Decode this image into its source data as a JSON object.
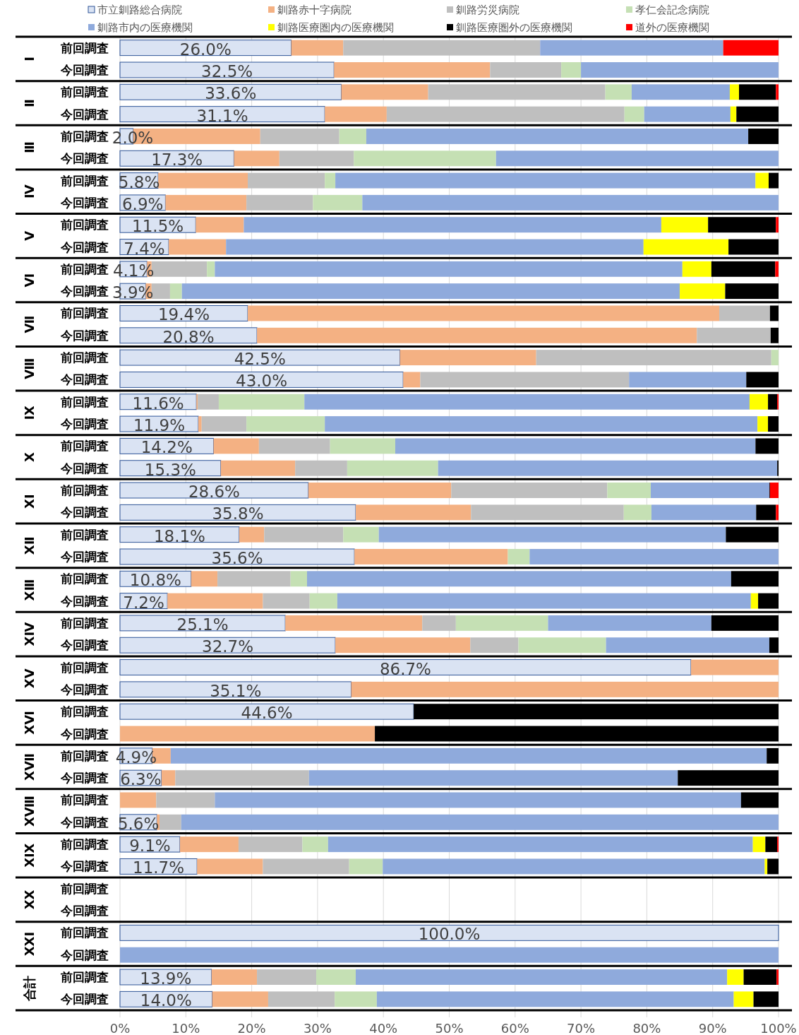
{
  "chart_data": {
    "type": "bar",
    "orientation": "horizontal",
    "stacked": true,
    "grid": "x",
    "legend": "top",
    "categories": [
      "前回調査",
      "今回調査",
      "前回調査",
      "今回調査",
      "前回調査",
      "今回調査",
      "前回調査",
      "今回調査",
      "前回調査",
      "今回調査",
      "前回調査",
      "今回調査",
      "前回調査",
      "今回調査",
      "前回調査",
      "今回調査",
      "前回調査",
      "今回調査",
      "前回調査",
      "今回調査",
      "前回調査",
      "今回調査",
      "前回調査",
      "今回調査",
      "前回調査",
      "今回調査",
      "前回調査",
      "今回調査",
      "前回調査",
      "今回調査",
      "前回調査",
      "今回調査",
      "前回調査",
      "今回調査",
      "前回調査",
      "今回調査",
      "前回調査",
      "今回調査",
      "前回調査",
      "今回調査",
      "前回調査",
      "今回調査",
      "前回調査",
      "今回調査"
    ],
    "annotations": [
      "Ⅰ",
      "Ⅱ",
      "Ⅲ",
      "Ⅳ",
      "Ⅴ",
      "Ⅵ",
      "Ⅶ",
      "Ⅷ",
      "Ⅸ",
      "Ⅹ",
      "ⅩⅠ",
      "ⅩⅡ",
      "ⅩⅢ",
      "ⅩⅣ",
      "ⅩⅤ",
      "ⅩⅥ",
      "ⅩⅦ",
      "ⅩⅧ",
      "ⅩⅨ",
      "ⅩⅩ",
      "ⅩⅩⅠ",
      "合計"
    ],
    "xlim": [
      0,
      100
    ],
    "xticks": [
      {
        "value": 0,
        "label": "0%"
      },
      {
        "value": 10,
        "label": "10%"
      },
      {
        "value": 20,
        "label": "20%"
      },
      {
        "value": 30,
        "label": "30%"
      },
      {
        "value": 40,
        "label": "40%"
      },
      {
        "value": 50,
        "label": "50%"
      },
      {
        "value": 60,
        "label": "60%"
      },
      {
        "value": 70,
        "label": "70%"
      },
      {
        "value": 80,
        "label": "80%"
      },
      {
        "value": 90,
        "label": "90%"
      },
      {
        "value": 100,
        "label": "100%"
      }
    ],
    "series": [
      {
        "name": "市立釧路総合病院",
        "color": "#dae3f3",
        "values": [
          26.0,
          32.5,
          33.6,
          31.1,
          2.0,
          17.3,
          5.8,
          6.9,
          11.5,
          7.4,
          4.1,
          3.9,
          19.4,
          20.8,
          42.5,
          43.0,
          11.6,
          11.9,
          14.2,
          15.3,
          28.6,
          35.8,
          18.1,
          35.6,
          10.8,
          7.2,
          25.1,
          32.7,
          86.7,
          35.1,
          44.6,
          null,
          4.9,
          6.3,
          null,
          5.6,
          9.1,
          11.7,
          null,
          null,
          100.0,
          null,
          13.9,
          14.0
        ],
        "value_labels": [
          "26.0%",
          "32.5%",
          "33.6%",
          "31.1%",
          "2.0%",
          "17.3%",
          "5.8%",
          "6.9%",
          "11.5%",
          "7.4%",
          "4.1%",
          "3.9%",
          "19.4%",
          "20.8%",
          "42.5%",
          "43.0%",
          "11.6%",
          "11.9%",
          "14.2%",
          "15.3%",
          "28.6%",
          "35.8%",
          "18.1%",
          "35.6%",
          "10.8%",
          "7.2%",
          "25.1%",
          "32.7%",
          "86.7%",
          "35.1%",
          "44.6%",
          null,
          "4.9%",
          "6.3%",
          null,
          "5.6%",
          "9.1%",
          "11.7%",
          null,
          null,
          "100.0%",
          null,
          "13.9%",
          "14.0%"
        ]
      },
      {
        "name": "釧路赤十字病院",
        "color": "#f4b183",
        "values": [
          7.9,
          23.7,
          13.2,
          9.4,
          19.3,
          6.9,
          13.6,
          12.3,
          7.3,
          8.7,
          0.7,
          0.9,
          71.6,
          66.8,
          20.7,
          2.6,
          0.2,
          0.5,
          6.9,
          11.3,
          21.7,
          17.5,
          3.8,
          23.3,
          4.0,
          14.5,
          20.8,
          20.5,
          13.3,
          64.9,
          null,
          38.7,
          2.8,
          2.1,
          5.5,
          0.4,
          8.9,
          10.0,
          null,
          null,
          null,
          null,
          6.9,
          8.5
        ]
      },
      {
        "name": "釧路労災病院",
        "color": "#bfbfbf",
        "values": [
          29.9,
          10.8,
          26.9,
          36.1,
          12.0,
          11.3,
          11.7,
          10.1,
          null,
          null,
          8.4,
          2.8,
          7.7,
          11.2,
          35.7,
          31.7,
          3.2,
          6.8,
          10.8,
          7.9,
          23.7,
          23.2,
          12.0,
          null,
          11.1,
          7.1,
          5.1,
          7.3,
          null,
          null,
          null,
          null,
          null,
          20.3,
          8.9,
          3.3,
          9.7,
          13.1,
          null,
          null,
          null,
          null,
          9.0,
          10.1
        ]
      },
      {
        "name": "孝仁会記念病院",
        "color": "#c5e0b4",
        "values": [
          null,
          3.0,
          4.0,
          3.0,
          4.1,
          21.6,
          1.6,
          7.5,
          null,
          null,
          1.2,
          1.8,
          null,
          null,
          1.1,
          null,
          13.0,
          11.9,
          9.9,
          13.8,
          6.6,
          4.2,
          5.4,
          3.3,
          2.5,
          4.2,
          14.0,
          13.3,
          null,
          null,
          null,
          null,
          null,
          null,
          null,
          null,
          3.9,
          5.1,
          null,
          null,
          null,
          null,
          6.0,
          6.4
        ]
      },
      {
        "name": "釧路市内の医療機関",
        "color": "#8faadc",
        "values": [
          27.8,
          30.0,
          14.9,
          13.1,
          58.0,
          42.9,
          63.8,
          63.2,
          63.4,
          63.4,
          71.0,
          75.6,
          null,
          null,
          null,
          17.8,
          67.6,
          65.7,
          54.7,
          51.5,
          18.0,
          15.9,
          52.7,
          37.8,
          64.4,
          62.8,
          24.8,
          24.8,
          null,
          null,
          null,
          null,
          90.5,
          56.0,
          79.9,
          90.7,
          64.5,
          58.0,
          null,
          null,
          null,
          100.0,
          56.4,
          54.2
        ]
      },
      {
        "name": "釧路医療圏内の医療機関",
        "color": "#ffff00",
        "values": [
          null,
          null,
          1.4,
          0.9,
          null,
          null,
          2.0,
          null,
          7.1,
          12.9,
          4.4,
          6.9,
          null,
          null,
          null,
          null,
          2.8,
          1.6,
          null,
          null,
          null,
          null,
          null,
          null,
          null,
          1.1,
          null,
          null,
          null,
          null,
          null,
          null,
          null,
          null,
          null,
          null,
          1.9,
          0.4,
          null,
          null,
          null,
          null,
          2.5,
          3.0
        ]
      },
      {
        "name": "釧路医療圏外の医療機関",
        "color": "#000000",
        "values": [
          null,
          null,
          5.6,
          6.4,
          4.6,
          null,
          1.5,
          null,
          10.3,
          7.6,
          9.7,
          8.1,
          1.3,
          1.2,
          null,
          4.9,
          1.4,
          1.6,
          3.5,
          0.2,
          0.1,
          3.0,
          8.0,
          null,
          7.2,
          3.1,
          10.2,
          1.4,
          null,
          null,
          55.4,
          61.3,
          1.8,
          15.3,
          5.7,
          null,
          1.8,
          1.7,
          null,
          null,
          null,
          null,
          5.0,
          3.8
        ]
      },
      {
        "name": "道外の医療機関",
        "color": "#ff0000",
        "values": [
          8.4,
          null,
          0.4,
          null,
          null,
          null,
          null,
          null,
          0.4,
          null,
          0.5,
          null,
          null,
          null,
          null,
          null,
          0.2,
          null,
          null,
          null,
          1.3,
          0.4,
          null,
          null,
          null,
          null,
          null,
          null,
          null,
          null,
          null,
          null,
          null,
          null,
          null,
          null,
          0.2,
          null,
          null,
          null,
          null,
          null,
          0.3,
          null
        ]
      }
    ]
  }
}
